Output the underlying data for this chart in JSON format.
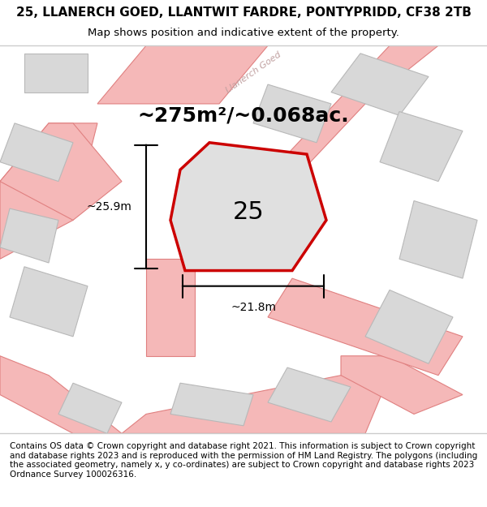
{
  "title_line1": "25, LLANERCH GOED, LLANTWIT FARDRE, PONTYPRIDD, CF38 2TB",
  "title_line2": "Map shows position and indicative extent of the property.",
  "area_text": "~275m²/~0.068ac.",
  "number_label": "25",
  "width_label": "~21.8m",
  "height_label": "~25.9m",
  "footer_text": "Contains OS data © Crown copyright and database right 2021. This information is subject to Crown copyright and database rights 2023 and is reproduced with the permission of HM Land Registry. The polygons (including the associated geometry, namely x, y co-ordinates) are subject to Crown copyright and database rights 2023 Ordnance Survey 100026316.",
  "bg_color": "#f0f0f0",
  "map_bg": "#e8e8e8",
  "plot_fill": "#e0e0e0",
  "plot_stroke": "#cc0000",
  "road_color": "#f5b8b8",
  "road_stroke": "#e08080",
  "building_fill": "#d8d8d8",
  "building_stroke": "#c0c0c0",
  "street_label_color": "#c0a0a0",
  "title_fontsize": 11,
  "subtitle_fontsize": 9.5,
  "area_fontsize": 18,
  "number_fontsize": 22,
  "dim_fontsize": 10,
  "footer_fontsize": 7.5
}
